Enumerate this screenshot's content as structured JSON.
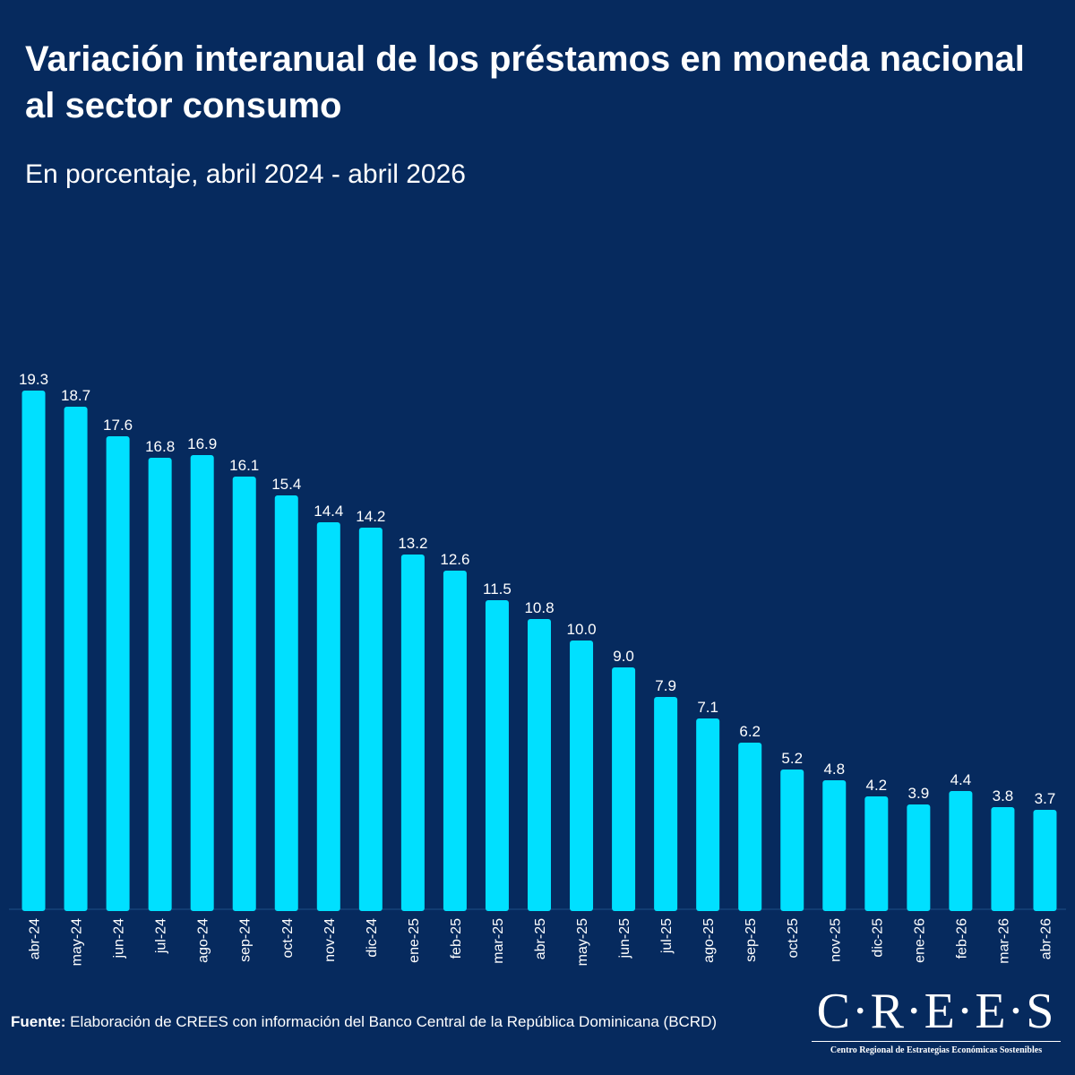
{
  "header": {
    "title": "Variación interanual de los préstamos en moneda nacional al sector consumo",
    "subtitle": "En porcentaje, abril 2024 - abril 2026"
  },
  "footer": {
    "source_label": "Fuente:",
    "source_text": " Elaboración de CREES con información del Banco Central de la República Dominicana (BCRD)"
  },
  "logo": {
    "mark": "C·R·E·E·S",
    "caption": "Centro Regional de Estrategias Económicas Sostenibles"
  },
  "colors": {
    "background": "#062a5e",
    "bar": "#00e0ff",
    "text": "#ffffff"
  },
  "chart_data": {
    "type": "bar",
    "categories": [
      "abr-24",
      "may-24",
      "jun-24",
      "jul-24",
      "ago-24",
      "sep-24",
      "oct-24",
      "nov-24",
      "dic-24",
      "ene-25",
      "feb-25",
      "mar-25",
      "abr-25",
      "may-25",
      "jun-25",
      "jul-25",
      "ago-25",
      "sep-25",
      "oct-25",
      "nov-25",
      "dic-25",
      "ene-26",
      "feb-26",
      "mar-26",
      "abr-26"
    ],
    "values": [
      19.3,
      18.7,
      17.6,
      16.8,
      16.9,
      16.1,
      15.4,
      14.4,
      14.2,
      13.2,
      12.6,
      11.5,
      10.8,
      10.0,
      9.0,
      7.9,
      7.1,
      6.2,
      5.2,
      4.8,
      4.2,
      3.9,
      4.4,
      3.8,
      3.7
    ],
    "data_labels": [
      "19.3",
      "18.7",
      "17.6",
      "16.8",
      "16.9",
      "16.1",
      "15.4",
      "14.4",
      "14.2",
      "13.2",
      "12.6",
      "11.5",
      "10.8",
      "10.0",
      "9.0",
      "7.9",
      "7.1",
      "6.2",
      "5.2",
      "4.8",
      "4.2",
      "3.9",
      "4.4",
      "3.8",
      "3.7"
    ],
    "title": "Variación interanual de los préstamos en moneda nacional al sector consumo",
    "subtitle": "En porcentaje, abril 2024 - abril 2026",
    "xlabel": "",
    "ylabel": "",
    "ylim": [
      0,
      20
    ],
    "grid": false,
    "legend": "none"
  }
}
